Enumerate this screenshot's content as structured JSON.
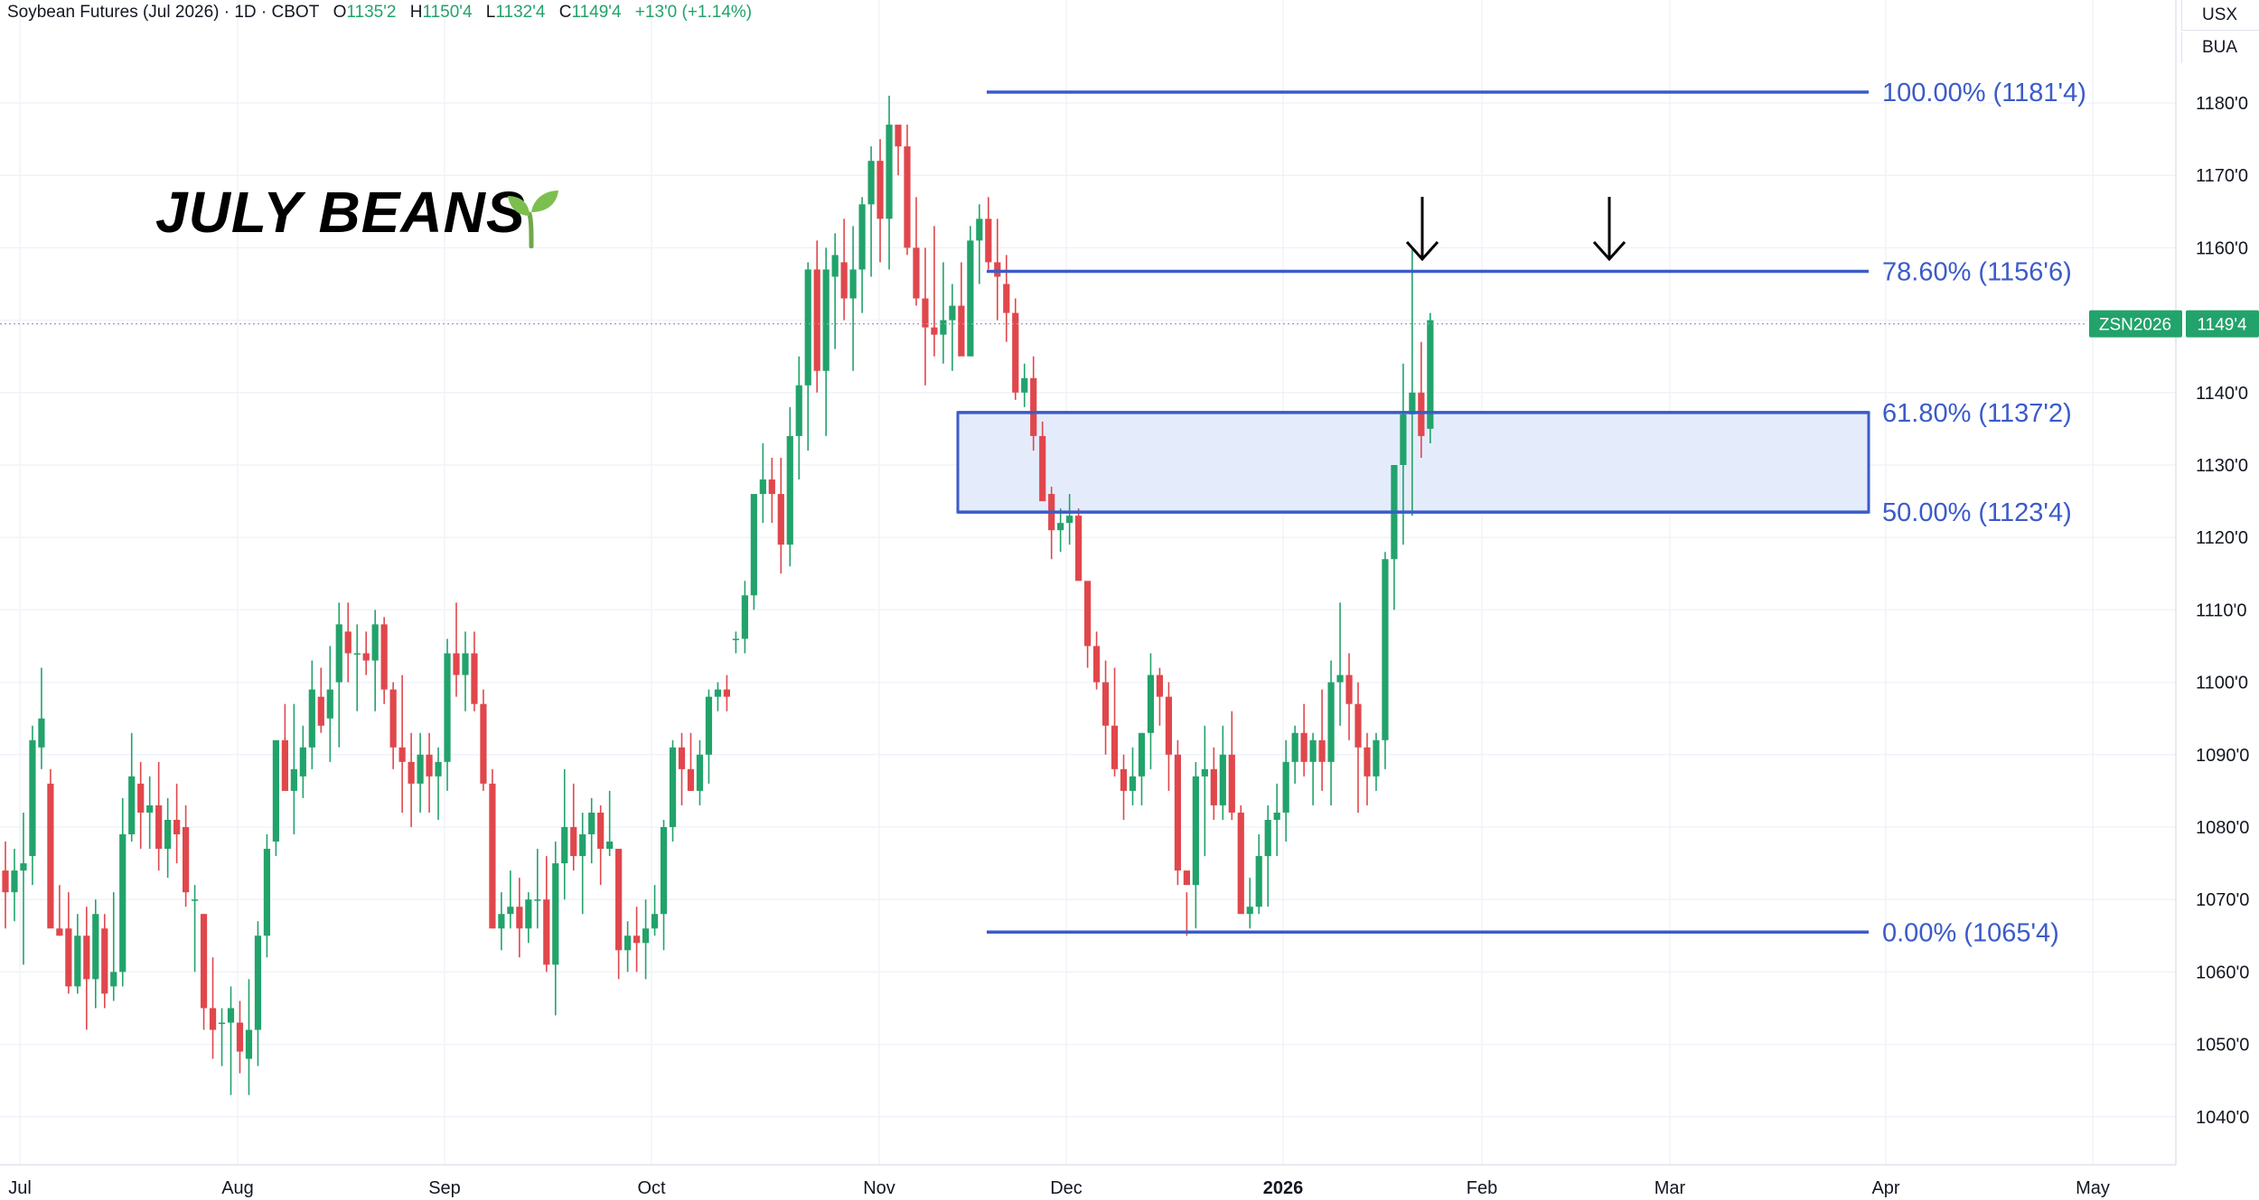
{
  "header": {
    "symbol": "Soybean Futures (Jul 2026) · 1D · CBOT",
    "open_label": "O",
    "open": "1135'2",
    "high_label": "H",
    "high": "1150'4",
    "low_label": "L",
    "low": "1132'4",
    "close_label": "C",
    "close": "1149'4",
    "change": "+13'0 (+1.14%)"
  },
  "units": [
    "USX",
    "BUA"
  ],
  "annotation_title": "JULY BEANS",
  "colors": {
    "up": "#22a36b",
    "down": "#e0474c",
    "fib": "#3b5bc9",
    "zone_fill": "#e4ecfb",
    "price_tag": "#22a36b"
  },
  "price_tag": {
    "symbol": "ZSN2026",
    "price": "1149'4",
    "value": 1149.5
  },
  "chart_data": {
    "type": "candlestick",
    "title": "",
    "x_tick_labels": [
      "Jul",
      "Aug",
      "Sep",
      "Oct",
      "Nov",
      "Dec",
      "2026",
      "Feb",
      "Mar",
      "Apr",
      "May"
    ],
    "y_tick_labels": [
      "1180'0",
      "1170'0",
      "1160'0",
      "1150'0",
      "1140'0",
      "1130'0",
      "1120'0",
      "1110'0",
      "1100'0",
      "1090'0",
      "1080'0",
      "1070'0",
      "1060'0",
      "1050'0",
      "1040'0"
    ],
    "ylim": [
      1036,
      1192
    ],
    "grid": true,
    "fib_levels": [
      {
        "level": 100.0,
        "price": 1181.5,
        "label": "100.00% (1181'4)"
      },
      {
        "level": 78.6,
        "price": 1156.75,
        "label": "78.60% (1156'6)"
      },
      {
        "level": 61.8,
        "price": 1137.25,
        "label": "61.80% (1137'2)"
      },
      {
        "level": 50.0,
        "price": 1123.5,
        "label": "50.00% (1123'4)"
      },
      {
        "level": 0.0,
        "price": 1065.5,
        "label": "0.00% (1065'4)"
      }
    ],
    "highlight_zone": [
      1123.5,
      1137.25
    ],
    "arrows": [
      "down",
      "down"
    ],
    "candles_ohlc": [
      [
        1074,
        1078,
        1066,
        1071
      ],
      [
        1071,
        1077,
        1067,
        1074
      ],
      [
        1074,
        1082,
        1061,
        1075
      ],
      [
        1076,
        1094,
        1072,
        1092
      ],
      [
        1091,
        1102,
        1088,
        1095
      ],
      [
        1086,
        1088,
        1067,
        1066
      ],
      [
        1066,
        1072,
        1065,
        1065
      ],
      [
        1066,
        1071,
        1057,
        1058
      ],
      [
        1058,
        1068,
        1057,
        1065
      ],
      [
        1065,
        1069,
        1052,
        1059
      ],
      [
        1059,
        1070,
        1055,
        1068
      ],
      [
        1066,
        1068,
        1055,
        1057
      ],
      [
        1058,
        1071,
        1056,
        1060
      ],
      [
        1060,
        1084,
        1058,
        1079
      ],
      [
        1079,
        1093,
        1078,
        1087
      ],
      [
        1086,
        1089,
        1077,
        1082
      ],
      [
        1082,
        1087,
        1077,
        1083
      ],
      [
        1083,
        1089,
        1074,
        1077
      ],
      [
        1077,
        1084,
        1073,
        1081
      ],
      [
        1081,
        1086,
        1075,
        1079
      ],
      [
        1080,
        1083,
        1069,
        1071
      ],
      [
        1070,
        1072,
        1060,
        1070
      ],
      [
        1068,
        1068,
        1052,
        1055
      ],
      [
        1055,
        1062,
        1048,
        1052
      ],
      [
        1053,
        1055,
        1047,
        1053
      ],
      [
        1053,
        1058,
        1043,
        1055
      ],
      [
        1053,
        1056,
        1046,
        1049
      ],
      [
        1048,
        1059,
        1043,
        1052
      ],
      [
        1052,
        1067,
        1047,
        1065
      ],
      [
        1065,
        1079,
        1062,
        1077
      ],
      [
        1078,
        1091,
        1076,
        1092
      ],
      [
        1092,
        1097,
        1085,
        1085
      ],
      [
        1085,
        1097,
        1079,
        1088
      ],
      [
        1087,
        1094,
        1084,
        1091
      ],
      [
        1091,
        1103,
        1088,
        1099
      ],
      [
        1098,
        1102,
        1093,
        1094
      ],
      [
        1095,
        1105,
        1089,
        1099
      ],
      [
        1100,
        1111,
        1091,
        1108
      ],
      [
        1107,
        1111,
        1100,
        1104
      ],
      [
        1104,
        1108,
        1096,
        1104
      ],
      [
        1104,
        1107,
        1101,
        1103
      ],
      [
        1103,
        1110,
        1096,
        1108
      ],
      [
        1108,
        1109,
        1097,
        1099
      ],
      [
        1099,
        1100,
        1088,
        1091
      ],
      [
        1091,
        1101,
        1082,
        1089
      ],
      [
        1089,
        1093,
        1080,
        1086
      ],
      [
        1086,
        1093,
        1082,
        1090
      ],
      [
        1090,
        1093,
        1082,
        1087
      ],
      [
        1087,
        1091,
        1081,
        1089
      ],
      [
        1089,
        1106,
        1085,
        1104
      ],
      [
        1104,
        1111,
        1098,
        1101
      ],
      [
        1101,
        1107,
        1096,
        1104
      ],
      [
        1104,
        1107,
        1096,
        1097
      ],
      [
        1097,
        1099,
        1085,
        1086
      ],
      [
        1086,
        1088,
        1066,
        1066
      ],
      [
        1066,
        1071,
        1063,
        1068
      ],
      [
        1068,
        1074,
        1066,
        1069
      ],
      [
        1069,
        1073,
        1062,
        1066
      ],
      [
        1066,
        1071,
        1064,
        1070
      ],
      [
        1070,
        1077,
        1066,
        1070
      ],
      [
        1070,
        1076,
        1060,
        1061
      ],
      [
        1061,
        1078,
        1054,
        1075
      ],
      [
        1075,
        1088,
        1070,
        1080
      ],
      [
        1080,
        1086,
        1074,
        1076
      ],
      [
        1076,
        1082,
        1068,
        1079
      ],
      [
        1079,
        1084,
        1075,
        1082
      ],
      [
        1082,
        1083,
        1072,
        1077
      ],
      [
        1077,
        1085,
        1076,
        1078
      ],
      [
        1077,
        1077,
        1059,
        1063
      ],
      [
        1063,
        1067,
        1060,
        1065
      ],
      [
        1065,
        1069,
        1060,
        1064
      ],
      [
        1064,
        1070,
        1059,
        1066
      ],
      [
        1066,
        1072,
        1065,
        1068
      ],
      [
        1068,
        1081,
        1063,
        1080
      ],
      [
        1080,
        1092,
        1078,
        1091
      ],
      [
        1091,
        1093,
        1083,
        1088
      ],
      [
        1088,
        1093,
        1085,
        1085
      ],
      [
        1085,
        1092,
        1083,
        1090
      ],
      [
        1090,
        1099,
        1086,
        1098
      ],
      [
        1098,
        1100,
        1096,
        1099
      ],
      [
        1099,
        1101,
        1096,
        1098
      ],
      [
        1106,
        1107,
        1104,
        1106
      ],
      [
        1106,
        1114,
        1104,
        1112
      ],
      [
        1112,
        1124,
        1110,
        1126
      ],
      [
        1126,
        1133,
        1122,
        1128
      ],
      [
        1128,
        1131,
        1122,
        1126
      ],
      [
        1126,
        1131,
        1115,
        1119
      ],
      [
        1119,
        1138,
        1116,
        1134
      ],
      [
        1134,
        1145,
        1128,
        1141
      ],
      [
        1141,
        1158,
        1132,
        1157
      ],
      [
        1157,
        1161,
        1140,
        1143
      ],
      [
        1143,
        1160,
        1134,
        1157
      ],
      [
        1156,
        1162,
        1146,
        1159
      ],
      [
        1158,
        1164,
        1150,
        1153
      ],
      [
        1153,
        1163,
        1143,
        1157
      ],
      [
        1157,
        1167,
        1151,
        1166
      ],
      [
        1166,
        1174,
        1156,
        1172
      ],
      [
        1172,
        1175,
        1158,
        1164
      ],
      [
        1164,
        1181,
        1157,
        1177
      ],
      [
        1177,
        1176,
        1170,
        1174
      ],
      [
        1174,
        1177,
        1159,
        1160
      ],
      [
        1160,
        1167,
        1152,
        1153
      ],
      [
        1153,
        1160,
        1141,
        1149
      ],
      [
        1149,
        1163,
        1145,
        1148
      ],
      [
        1148,
        1158,
        1144,
        1150
      ],
      [
        1150,
        1155,
        1143,
        1152
      ],
      [
        1152,
        1158,
        1146,
        1145
      ],
      [
        1145,
        1163,
        1146,
        1161
      ],
      [
        1161,
        1166,
        1155,
        1164
      ],
      [
        1164,
        1167,
        1157,
        1158
      ],
      [
        1158,
        1164,
        1150,
        1156
      ],
      [
        1155,
        1159,
        1147,
        1151
      ],
      [
        1151,
        1153,
        1139,
        1140
      ],
      [
        1140,
        1144,
        1138,
        1142
      ],
      [
        1142,
        1145,
        1132,
        1134
      ],
      [
        1134,
        1136,
        1126,
        1125
      ],
      [
        1126,
        1127,
        1117,
        1121
      ],
      [
        1121,
        1124,
        1118,
        1122
      ],
      [
        1122,
        1126,
        1119,
        1123
      ],
      [
        1123,
        1124,
        1114,
        1114
      ],
      [
        1114,
        1111,
        1102,
        1105
      ],
      [
        1105,
        1107,
        1099,
        1100
      ],
      [
        1100,
        1103,
        1090,
        1094
      ],
      [
        1094,
        1102,
        1087,
        1088
      ],
      [
        1088,
        1090,
        1081,
        1085
      ],
      [
        1085,
        1091,
        1083,
        1087
      ],
      [
        1087,
        1093,
        1083,
        1093
      ],
      [
        1093,
        1104,
        1088,
        1101
      ],
      [
        1101,
        1102,
        1094,
        1098
      ],
      [
        1098,
        1100,
        1085,
        1090
      ],
      [
        1090,
        1092,
        1072,
        1074
      ],
      [
        1074,
        1071,
        1065,
        1072
      ],
      [
        1072,
        1089,
        1066,
        1087
      ],
      [
        1087,
        1094,
        1076,
        1088
      ],
      [
        1088,
        1091,
        1081,
        1083
      ],
      [
        1083,
        1094,
        1081,
        1090
      ],
      [
        1090,
        1096,
        1081,
        1082
      ],
      [
        1082,
        1083,
        1071,
        1068
      ],
      [
        1068,
        1073,
        1066,
        1069
      ],
      [
        1069,
        1079,
        1068,
        1076
      ],
      [
        1076,
        1083,
        1069,
        1081
      ],
      [
        1081,
        1086,
        1076,
        1082
      ],
      [
        1082,
        1092,
        1078,
        1089
      ],
      [
        1089,
        1094,
        1086,
        1093
      ],
      [
        1093,
        1097,
        1087,
        1089
      ],
      [
        1089,
        1093,
        1083,
        1092
      ],
      [
        1092,
        1099,
        1085,
        1089
      ],
      [
        1089,
        1103,
        1083,
        1100
      ],
      [
        1100,
        1111,
        1094,
        1101
      ],
      [
        1101,
        1104,
        1092,
        1097
      ],
      [
        1097,
        1100,
        1082,
        1091
      ],
      [
        1091,
        1093,
        1083,
        1087
      ],
      [
        1087,
        1093,
        1085,
        1092
      ],
      [
        1092,
        1118,
        1088,
        1117
      ],
      [
        1117,
        1124,
        1110,
        1130
      ],
      [
        1130,
        1144,
        1119,
        1137
      ],
      [
        1137,
        1160,
        1123,
        1140
      ],
      [
        1140,
        1147,
        1131,
        1134
      ],
      [
        1135,
        1151,
        1133,
        1150
      ]
    ]
  }
}
